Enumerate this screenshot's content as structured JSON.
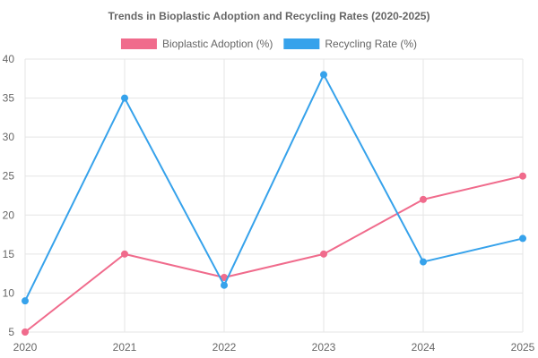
{
  "chart_data": {
    "type": "line",
    "title": "Trends in Bioplastic Adoption and Recycling Rates (2020-2025)",
    "xlabel": "",
    "ylabel": "",
    "categories": [
      "2020",
      "2021",
      "2022",
      "2023",
      "2024",
      "2025"
    ],
    "ylim": [
      5,
      40
    ],
    "yticks": [
      5,
      10,
      15,
      20,
      25,
      30,
      35,
      40
    ],
    "grid": true,
    "legend_position": "top",
    "series": [
      {
        "name": "Bioplastic Adoption (%)",
        "color": "#f06b8c",
        "values": [
          5,
          15,
          12,
          15,
          22,
          25
        ]
      },
      {
        "name": "Recycling Rate (%)",
        "color": "#36a2eb",
        "values": [
          9,
          35,
          11,
          38,
          14,
          17
        ]
      }
    ]
  }
}
